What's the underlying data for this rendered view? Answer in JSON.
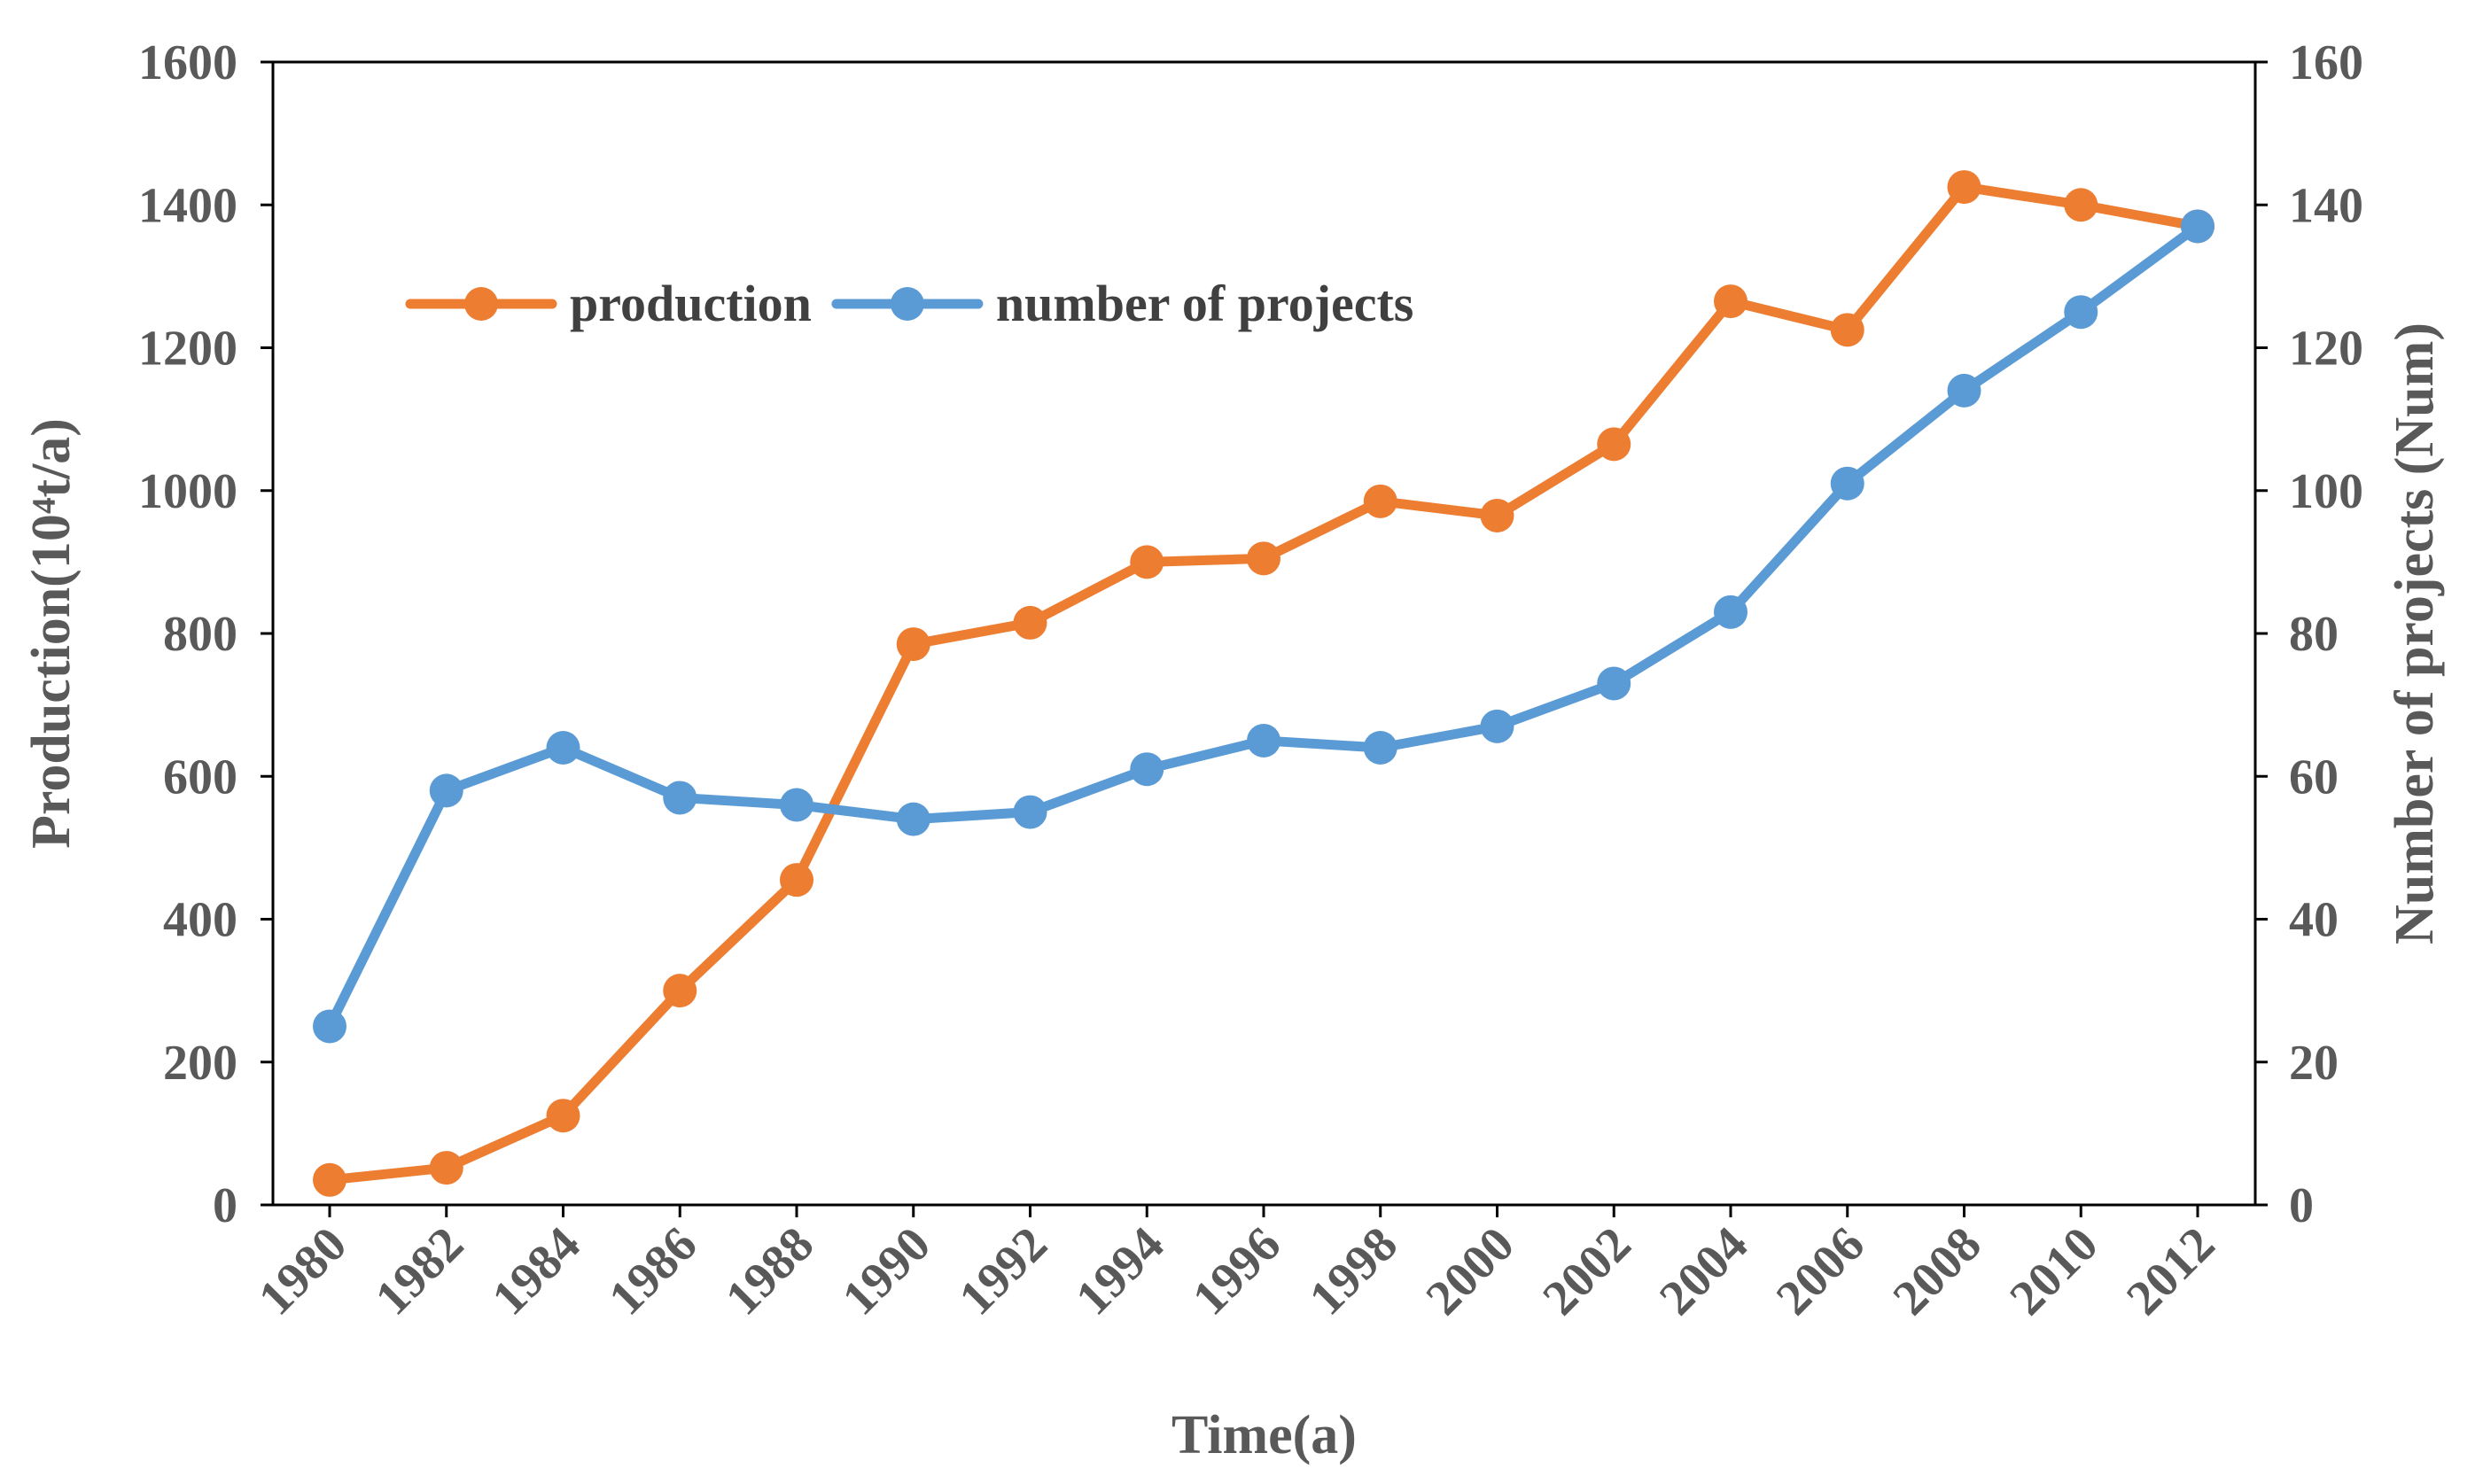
{
  "chart_data": {
    "type": "line",
    "title": "",
    "x": [
      "1980",
      "1982",
      "1984",
      "1986",
      "1988",
      "1990",
      "1992",
      "1994",
      "1996",
      "1998",
      "2000",
      "2002",
      "2004",
      "2006",
      "2008",
      "2010",
      "2012"
    ],
    "xlabel": "Time(a)",
    "ylabel_left": "Production(10⁴t/a)",
    "ylabel_right": "Number of projects (Num)",
    "ylim_left": [
      0,
      1600
    ],
    "ylim_right": [
      0,
      160
    ],
    "yticks_left": [
      "0",
      "200",
      "400",
      "600",
      "800",
      "1000",
      "1200",
      "1400",
      "1600"
    ],
    "yticks_right": [
      "0",
      "20",
      "40",
      "60",
      "80",
      "100",
      "120",
      "140",
      "160"
    ],
    "grid": false,
    "legend_position": "top-left, inside plot",
    "series": [
      {
        "name": "production",
        "axis": "left",
        "color": "#ED7D31",
        "values": [
          35,
          52,
          125,
          300,
          455,
          785,
          815,
          900,
          905,
          985,
          965,
          1065,
          1265,
          1225,
          1425,
          1400,
          1370
        ]
      },
      {
        "name": "number of projects",
        "axis": "right",
        "color": "#5B9BD5",
        "values": [
          25,
          58,
          64,
          57,
          56,
          54,
          55,
          61,
          65,
          64,
          67,
          73,
          83,
          101,
          114,
          125,
          137
        ]
      }
    ]
  }
}
